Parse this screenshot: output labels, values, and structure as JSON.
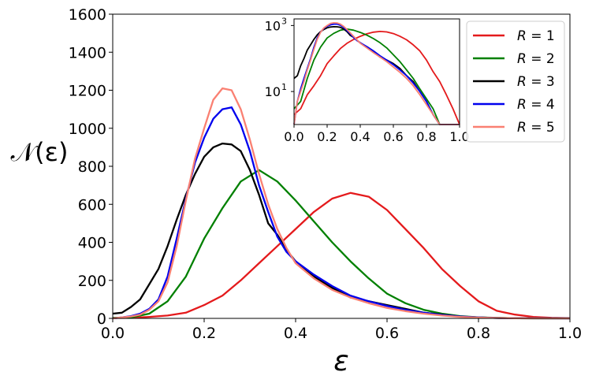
{
  "chart_data": {
    "type": "line",
    "xlabel": "ε",
    "ylabel": "𝒩(ε)",
    "xlim": [
      0.0,
      1.0
    ],
    "ylim": [
      0,
      1600
    ],
    "x_ticks": [
      "0.0",
      "0.2",
      "0.4",
      "0.6",
      "0.8",
      "1.0"
    ],
    "y_ticks": [
      "0",
      "200",
      "400",
      "600",
      "800",
      "1000",
      "1200",
      "1400",
      "1600"
    ],
    "legend_position": "upper-right",
    "series": [
      {
        "name": "R = 1",
        "label_var": "R",
        "label_eq": " = ",
        "label_val": "1",
        "color": "#e41a1c",
        "x": [
          0.0,
          0.04,
          0.08,
          0.12,
          0.16,
          0.2,
          0.24,
          0.28,
          0.32,
          0.36,
          0.4,
          0.44,
          0.48,
          0.52,
          0.56,
          0.6,
          0.64,
          0.68,
          0.72,
          0.76,
          0.8,
          0.84,
          0.88,
          0.92,
          0.96,
          1.0
        ],
        "values": [
          2,
          3,
          8,
          15,
          30,
          70,
          120,
          200,
          290,
          380,
          470,
          560,
          630,
          660,
          640,
          570,
          470,
          370,
          260,
          170,
          90,
          40,
          20,
          8,
          3,
          1
        ]
      },
      {
        "name": "R = 2",
        "label_var": "R",
        "label_eq": " = ",
        "label_val": "2",
        "color": "#008000",
        "x": [
          0.0,
          0.04,
          0.08,
          0.12,
          0.16,
          0.2,
          0.24,
          0.28,
          0.32,
          0.36,
          0.4,
          0.44,
          0.48,
          0.52,
          0.56,
          0.6,
          0.64,
          0.68,
          0.72,
          0.76,
          0.8,
          0.84,
          0.88,
          0.92,
          0.96,
          1.0
        ],
        "values": [
          3,
          5,
          25,
          90,
          220,
          420,
          580,
          720,
          780,
          720,
          620,
          510,
          400,
          300,
          210,
          130,
          80,
          45,
          25,
          12,
          6,
          3,
          1,
          0,
          0,
          0
        ]
      },
      {
        "name": "R = 3",
        "label_var": "R",
        "label_eq": " = ",
        "label_val": "3",
        "color": "#000000",
        "x": [
          0.0,
          0.02,
          0.04,
          0.06,
          0.08,
          0.1,
          0.12,
          0.14,
          0.16,
          0.18,
          0.2,
          0.22,
          0.24,
          0.26,
          0.28,
          0.3,
          0.32,
          0.34,
          0.36,
          0.38,
          0.4,
          0.44,
          0.48,
          0.52,
          0.56,
          0.6,
          0.64,
          0.68,
          0.72,
          0.76,
          0.8,
          0.84,
          0.88,
          1.0
        ],
        "values": [
          25,
          30,
          60,
          100,
          180,
          260,
          380,
          520,
          650,
          760,
          850,
          900,
          920,
          915,
          880,
          780,
          650,
          500,
          440,
          360,
          300,
          220,
          160,
          110,
          90,
          70,
          50,
          30,
          20,
          10,
          5,
          2,
          1,
          0
        ]
      },
      {
        "name": "R = 4",
        "label_var": "R",
        "label_eq": " = ",
        "label_val": "4",
        "color": "#0000ee",
        "x": [
          0.0,
          0.02,
          0.04,
          0.06,
          0.08,
          0.1,
          0.12,
          0.14,
          0.16,
          0.18,
          0.2,
          0.22,
          0.24,
          0.26,
          0.28,
          0.3,
          0.32,
          0.34,
          0.36,
          0.38,
          0.4,
          0.44,
          0.48,
          0.52,
          0.56,
          0.6,
          0.64,
          0.68,
          0.72,
          0.76,
          0.8,
          0.84,
          0.88,
          1.0
        ],
        "values": [
          0,
          5,
          12,
          25,
          50,
          100,
          220,
          420,
          630,
          820,
          950,
          1050,
          1100,
          1110,
          1020,
          880,
          700,
          560,
          430,
          350,
          300,
          230,
          170,
          120,
          90,
          65,
          45,
          30,
          18,
          10,
          5,
          2,
          1,
          0
        ]
      },
      {
        "name": "R = 5",
        "label_var": "R",
        "label_eq": " = ",
        "label_val": "5",
        "color": "#fa8072",
        "x": [
          0.0,
          0.02,
          0.04,
          0.06,
          0.08,
          0.1,
          0.12,
          0.14,
          0.16,
          0.18,
          0.2,
          0.22,
          0.24,
          0.26,
          0.28,
          0.3,
          0.32,
          0.34,
          0.36,
          0.38,
          0.4,
          0.44,
          0.48,
          0.52,
          0.56,
          0.6,
          0.64,
          0.68,
          0.72,
          0.76,
          0.8,
          0.84,
          0.88,
          1.0
        ],
        "values": [
          0,
          5,
          10,
          20,
          45,
          90,
          190,
          380,
          620,
          840,
          1000,
          1150,
          1210,
          1200,
          1100,
          940,
          760,
          600,
          470,
          370,
          290,
          210,
          150,
          110,
          80,
          55,
          38,
          25,
          15,
          8,
          4,
          2,
          1,
          0
        ]
      }
    ],
    "inset": {
      "type": "line",
      "yscale": "log",
      "xlim": [
        0.0,
        1.0
      ],
      "ylim_log10": [
        0.0,
        3.2
      ],
      "x_ticks": [
        "0.0",
        "0.2",
        "0.4",
        "0.6",
        "0.8",
        "1.0"
      ],
      "y_ticks": [
        {
          "base": "10",
          "exp": "1",
          "value": 10
        },
        {
          "base": "10",
          "exp": "3",
          "value": 1000
        }
      ]
    }
  }
}
